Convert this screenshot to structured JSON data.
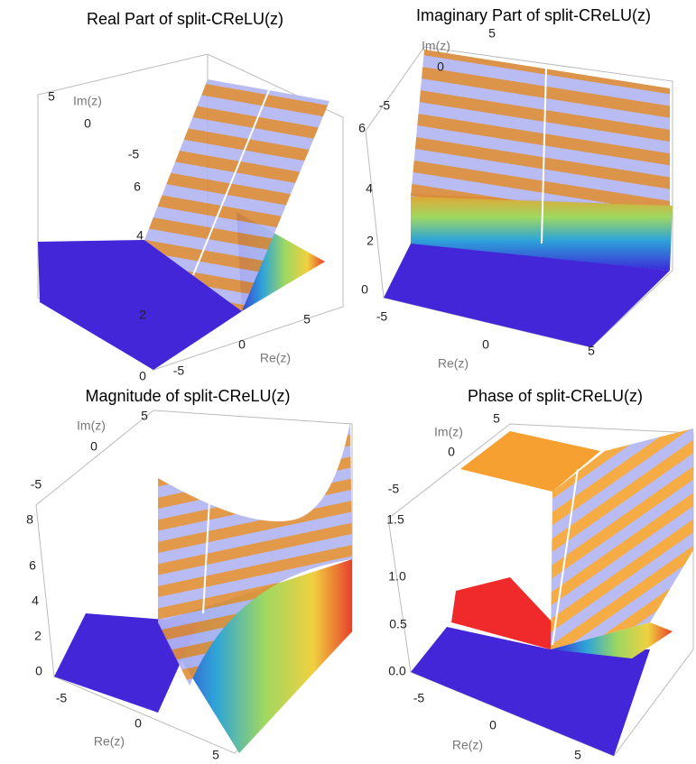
{
  "panels": [
    {
      "title": "Real Part of split-CReLU(z)",
      "im_label": "Im(z)",
      "im_ticks": [
        "5",
        "0",
        "-5"
      ],
      "z_ticks": [
        "6",
        "4",
        "2",
        "0"
      ],
      "re_label": "Re(z)",
      "re_ticks": [
        "-5",
        "0",
        "5"
      ]
    },
    {
      "title": "Imaginary Part of split-CReLU(z)",
      "im_label": "Im(z)",
      "im_ticks": [
        "5",
        "0",
        "-5"
      ],
      "z_ticks": [
        "6",
        "4",
        "2",
        "0"
      ],
      "re_label": "Re(z)",
      "re_ticks": [
        "-5",
        "0",
        "5"
      ]
    },
    {
      "title": "Magnitude of split-CReLU(z)",
      "im_label": "Im(z)",
      "im_ticks": [
        "5",
        "0",
        "-5"
      ],
      "z_ticks": [
        "8",
        "6",
        "4",
        "2",
        "0"
      ],
      "re_label": "Re(z)",
      "re_ticks": [
        "-5",
        "0",
        "5"
      ]
    },
    {
      "title": "Phase of split-CReLU(z)",
      "im_label": "Im(z)",
      "im_ticks": [
        "5",
        "0",
        "-5"
      ],
      "z_ticks": [
        "1.5",
        "1.0",
        "0.5",
        "0.0"
      ],
      "re_label": "Re(z)",
      "re_ticks": [
        "-5",
        "0",
        "5"
      ]
    }
  ]
}
